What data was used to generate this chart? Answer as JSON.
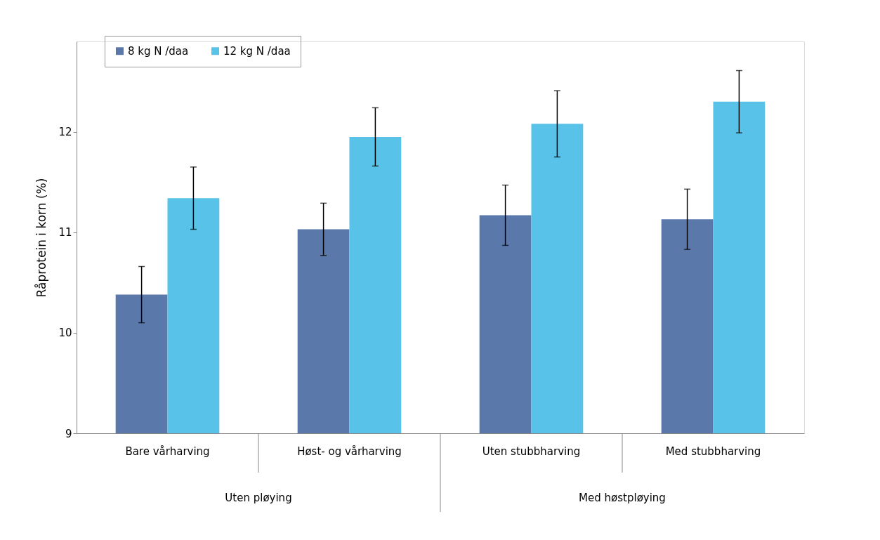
{
  "chart_data": {
    "type": "bar",
    "ylabel": "Råprotein i korn (%)",
    "categories": [
      "Bare vårharving",
      "Høst- og vårharving",
      "Uten stubbharving",
      "Med stubbharving"
    ],
    "series": [
      {
        "name": "8 kg N /daa",
        "color": "#5b78aa",
        "values": [
          10.38,
          11.03,
          11.17,
          11.13
        ],
        "errors": [
          0.28,
          0.26,
          0.3,
          0.3
        ]
      },
      {
        "name": "12 kg N /daa",
        "color": "#59c2e8",
        "values": [
          11.34,
          11.95,
          12.08,
          12.3
        ],
        "errors": [
          0.31,
          0.29,
          0.33,
          0.31
        ]
      }
    ],
    "ylim": [
      9,
      12.9
    ],
    "yticks": [
      9,
      10,
      11,
      12
    ],
    "legend": "top left",
    "grid": false,
    "annotations": [
      "Uten pløying",
      "Med høstpløying"
    ]
  }
}
